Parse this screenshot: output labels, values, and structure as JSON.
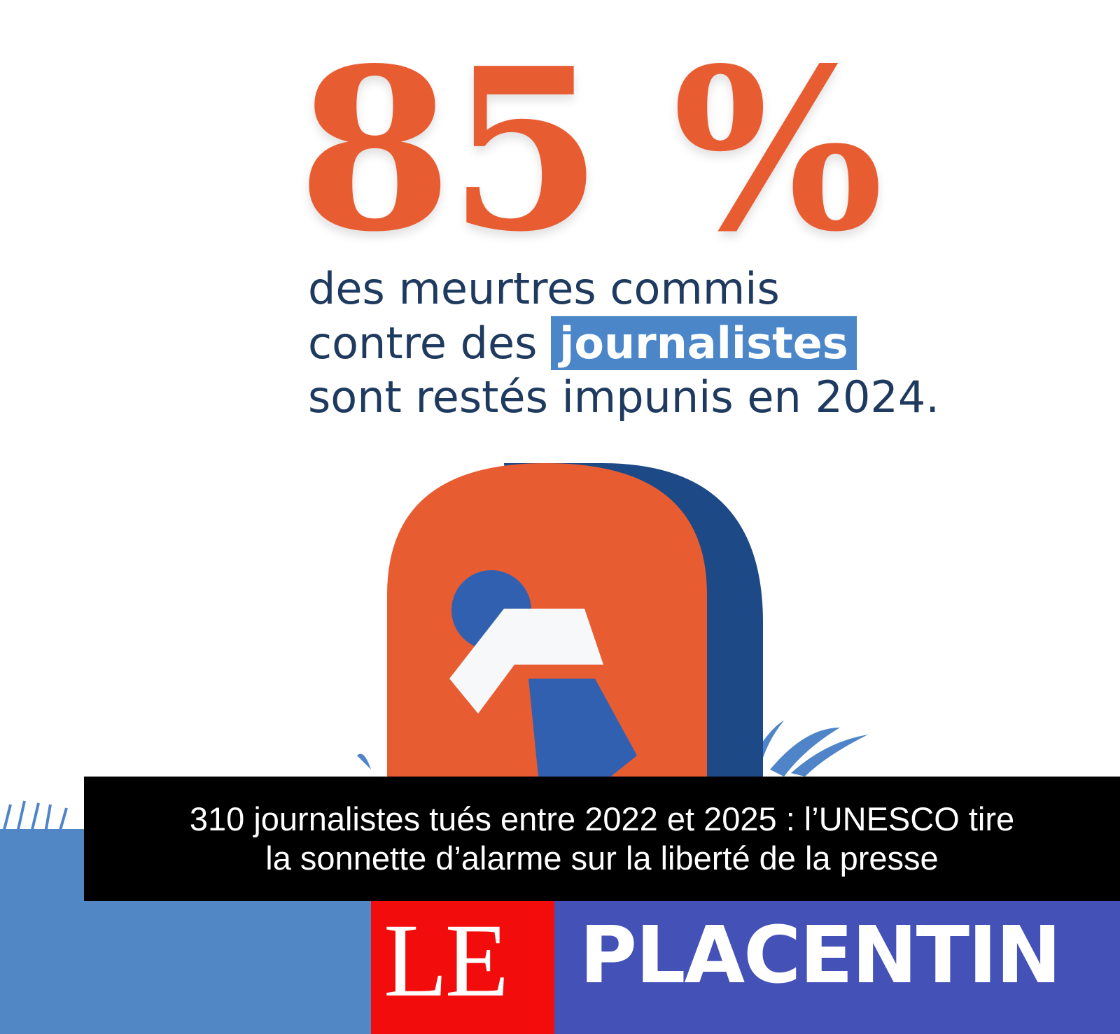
{
  "stat": {
    "value": "85 %",
    "color": "#e85c32"
  },
  "caption": {
    "line1": "des meurtres commis",
    "line2_prefix": "contre des",
    "line2_highlight": "journalistes",
    "line3": "sont restés impunis en 2024."
  },
  "headline": {
    "line1": "310 journalistes tués entre 2022 et 2025 : l’UNESCO tire",
    "line2": "la sonnette d’alarme sur la liberté de la presse"
  },
  "logo": {
    "le": "LE",
    "name": "PLACENTIN",
    "red": "#f20c0c",
    "blue": "#4452b8"
  },
  "illustration": {
    "icon": "keyhole-icon",
    "orange": "#e85c32",
    "navy": "#1d4a86",
    "blue": "#3260b0"
  }
}
